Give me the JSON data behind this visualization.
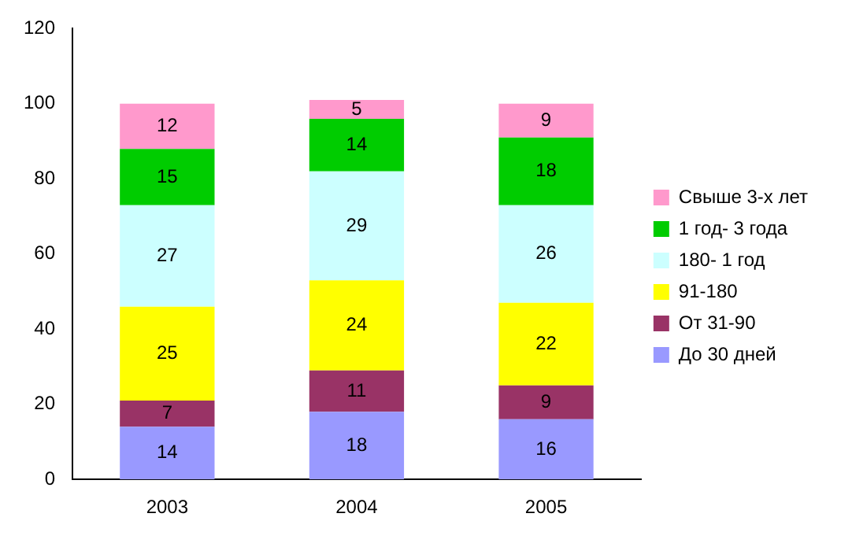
{
  "chart_data": {
    "type": "bar",
    "stacked": true,
    "categories": [
      "2003",
      "2004",
      "2005"
    ],
    "series": [
      {
        "name": "До 30 дней",
        "color": "#9999ff",
        "values": [
          14,
          18,
          16
        ]
      },
      {
        "name": "От 31-90",
        "color": "#993366",
        "values": [
          7,
          11,
          9
        ]
      },
      {
        "name": "91-180",
        "color": "#ffff00",
        "values": [
          25,
          24,
          22
        ]
      },
      {
        "name": "180- 1 год",
        "color": "#ccffff",
        "values": [
          27,
          29,
          26
        ]
      },
      {
        "name": "1 год- 3 года",
        "color": "#00cc00",
        "values": [
          15,
          14,
          18
        ]
      },
      {
        "name": "Свыше 3-х лет",
        "color": "#ff99cc",
        "values": [
          12,
          5,
          9
        ]
      }
    ],
    "ylim": [
      0,
      120
    ],
    "yticks": [
      0,
      20,
      40,
      60,
      80,
      100,
      120
    ],
    "grid": false,
    "legend": "right",
    "data_labels": true
  }
}
